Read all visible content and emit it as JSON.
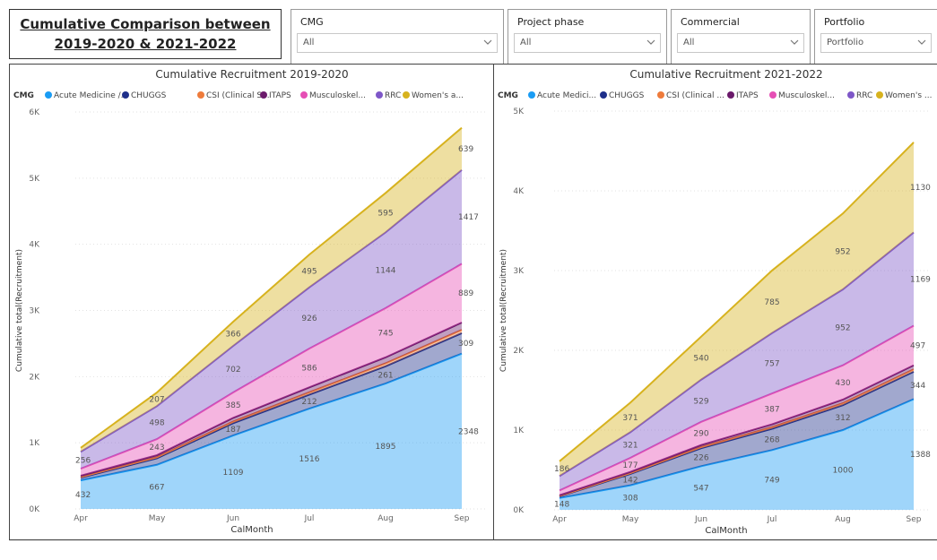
{
  "header": {
    "title_line1": "Cumulative Comparison between",
    "title_line2": "2019-2020 & 2021-2022"
  },
  "slicers": [
    {
      "label": "CMG",
      "value": "All"
    },
    {
      "label": "Project phase",
      "value": "All"
    },
    {
      "label": "Commercial",
      "value": "All"
    },
    {
      "label": "Portfolio",
      "value": "Portfolio"
    }
  ],
  "colors": {
    "acute": "#1a9cf4",
    "chuggs": "#1e2f8a",
    "csi": "#ee7b3b",
    "itaps": "#6b1a6b",
    "musculo": "#e64fb5",
    "rrc": "#7e57c8",
    "womens": "#d7b21e"
  },
  "chart_data": [
    {
      "type": "area",
      "title": "Cumulative Recruitment 2019-2020",
      "xlabel": "CalMonth",
      "ylabel": "Cumulative total(Recruitment)",
      "legend_title": "CMG",
      "legend_position": "top",
      "grid": true,
      "ylim": [
        0,
        6000
      ],
      "y_ticks": [
        "0K",
        "1K",
        "2K",
        "3K",
        "4K",
        "5K",
        "6K"
      ],
      "x": [
        "Apr",
        "May",
        "Jun",
        "Jul",
        "Aug",
        "Sep"
      ],
      "series": [
        {
          "name": "Acute Medicine /...",
          "color_key": "acute",
          "values": [
            432,
            667,
            1109,
            1516,
            1895,
            2348
          ],
          "labels": [
            "432",
            "667",
            "1109",
            "1516",
            "1895",
            "2348"
          ]
        },
        {
          "name": "CHUGGS",
          "color_key": "chuggs",
          "values": [
            40,
            100,
            187,
            212,
            261,
            309
          ],
          "labels": [
            "",
            "",
            "187",
            "212",
            "261",
            "309"
          ]
        },
        {
          "name": "CSI (Clinical S...",
          "color_key": "csi",
          "values": [
            10,
            15,
            25,
            35,
            45,
            50
          ],
          "labels": [
            "",
            "",
            "",
            "",
            "",
            ""
          ]
        },
        {
          "name": "ITAPS",
          "color_key": "itaps",
          "values": [
            20,
            30,
            55,
            75,
            90,
            110
          ],
          "labels": [
            "",
            "",
            "",
            "",
            "",
            ""
          ]
        },
        {
          "name": "Musculoskel...",
          "color_key": "musculo",
          "values": [
            106,
            243,
            385,
            586,
            745,
            889
          ],
          "labels": [
            "",
            "243",
            "385",
            "586",
            "745",
            "889"
          ]
        },
        {
          "name": "RRC",
          "color_key": "rrc",
          "values": [
            256,
            498,
            702,
            926,
            1144,
            1417
          ],
          "labels": [
            "256",
            "498",
            "702",
            "926",
            "1144",
            "1417"
          ]
        },
        {
          "name": "Women's a...",
          "color_key": "womens",
          "values": [
            60,
            207,
            366,
            495,
            595,
            639
          ],
          "labels": [
            "",
            "207",
            "366",
            "495",
            "595",
            "639"
          ]
        }
      ]
    },
    {
      "type": "area",
      "title": "Cumulative Recruitment 2021-2022",
      "xlabel": "CalMonth",
      "ylabel": "Cumulative total(Recruitment)",
      "legend_title": "CMG",
      "legend_position": "top",
      "grid": true,
      "ylim": [
        0,
        5000
      ],
      "y_ticks": [
        "0K",
        "1K",
        "2K",
        "3K",
        "4K",
        "5K"
      ],
      "x": [
        "Apr",
        "May",
        "Jun",
        "Jul",
        "Aug",
        "Sep"
      ],
      "series": [
        {
          "name": "Acute Medici...",
          "color_key": "acute",
          "values": [
            148,
            308,
            547,
            749,
            1000,
            1388
          ],
          "labels": [
            "148",
            "308",
            "547",
            "749",
            "1000",
            "1388"
          ]
        },
        {
          "name": "CHUGGS",
          "color_key": "chuggs",
          "values": [
            20,
            142,
            226,
            268,
            312,
            344
          ],
          "labels": [
            "",
            "142",
            "226",
            "268",
            "312",
            "344"
          ]
        },
        {
          "name": "CSI (Clinical ...",
          "color_key": "csi",
          "values": [
            5,
            10,
            15,
            20,
            25,
            30
          ],
          "labels": [
            "",
            "",
            "",
            "",
            "",
            ""
          ]
        },
        {
          "name": "ITAPS",
          "color_key": "itaps",
          "values": [
            10,
            15,
            25,
            35,
            45,
            50
          ],
          "labels": [
            "",
            "",
            "",
            "",
            "",
            ""
          ]
        },
        {
          "name": "Musculoskel...",
          "color_key": "musculo",
          "values": [
            60,
            177,
            290,
            387,
            430,
            497
          ],
          "labels": [
            "",
            "177",
            "290",
            "387",
            "430",
            "497"
          ]
        },
        {
          "name": "RRC",
          "color_key": "rrc",
          "values": [
            180,
            321,
            529,
            757,
            952,
            1169
          ],
          "labels": [
            "",
            "321",
            "529",
            "757",
            "952",
            "1169"
          ]
        },
        {
          "name": "Women's ...",
          "color_key": "womens",
          "values": [
            186,
            371,
            540,
            785,
            952,
            1130
          ],
          "labels": [
            "186",
            "371",
            "540",
            "785",
            "952",
            "1130"
          ]
        }
      ]
    }
  ]
}
